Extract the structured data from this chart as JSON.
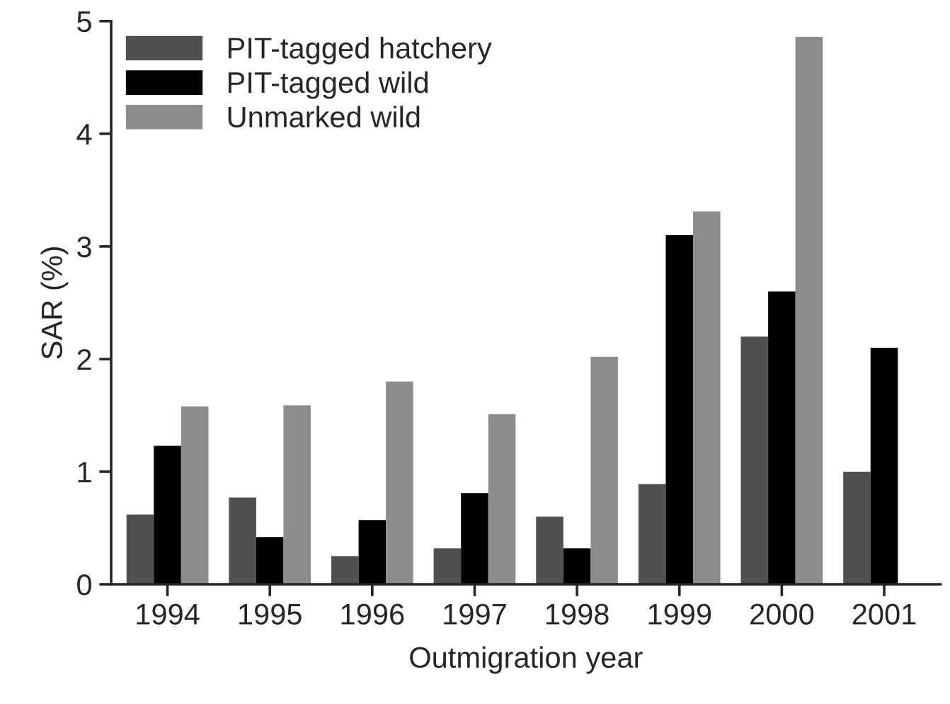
{
  "chart_data": {
    "type": "bar",
    "xlabel": "Outmigration year",
    "ylabel": "SAR (%)",
    "categories": [
      "1994",
      "1995",
      "1996",
      "1997",
      "1998",
      "1999",
      "2000",
      "2001"
    ],
    "series": [
      {
        "name": "PIT-tagged hatchery",
        "color": "#505050",
        "values": [
          0.62,
          0.77,
          0.25,
          0.32,
          0.6,
          0.89,
          2.2,
          1.0
        ]
      },
      {
        "name": "PIT-tagged wild",
        "color": "#000000",
        "values": [
          1.23,
          0.42,
          0.57,
          0.81,
          0.32,
          3.1,
          2.6,
          2.1
        ]
      },
      {
        "name": "Unmarked wild",
        "color": "#8c8c8c",
        "values": [
          1.58,
          1.59,
          1.8,
          1.51,
          2.02,
          3.31,
          4.86,
          null
        ]
      }
    ],
    "ylim": [
      0,
      5
    ],
    "yticks": [
      0,
      1,
      2,
      3,
      4,
      5
    ],
    "grid": false,
    "legend": "top left"
  }
}
